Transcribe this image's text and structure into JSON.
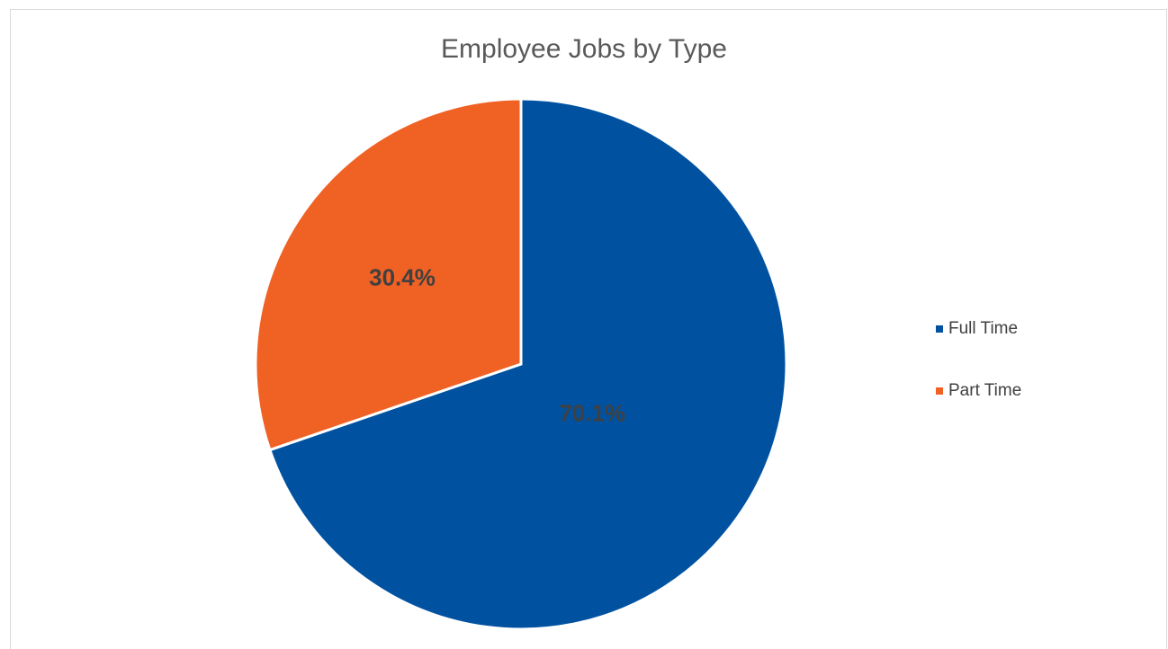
{
  "chart_data": {
    "type": "pie",
    "title": "Employee Jobs by Type",
    "categories": [
      "Full Time",
      "Part Time"
    ],
    "values": [
      70.1,
      30.4
    ],
    "data_labels": [
      "70.1%",
      "30.4%"
    ],
    "colors": [
      "#0052a1",
      "#f06124"
    ],
    "legend_position": "right",
    "start_angle": "12 o'clock",
    "direction": "clockwise"
  }
}
